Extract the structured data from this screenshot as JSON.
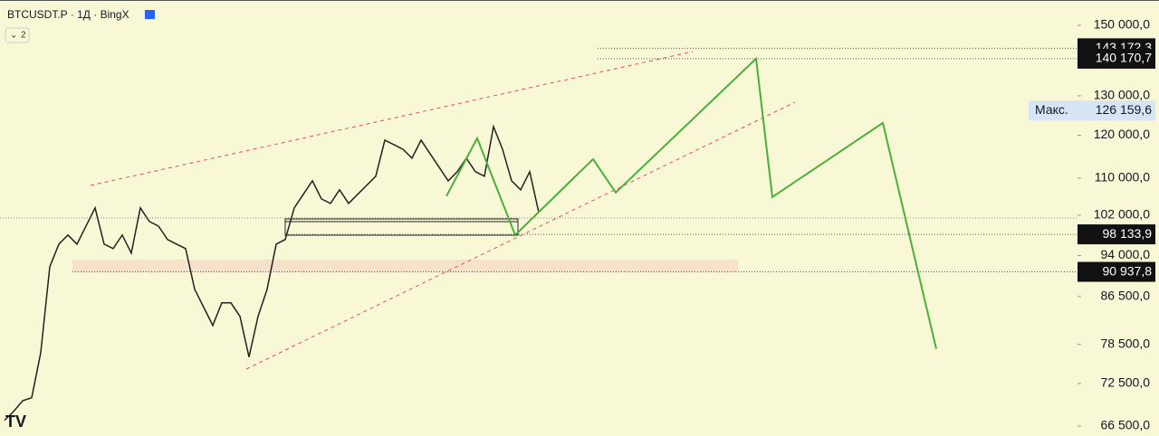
{
  "header": {
    "symbol": "BTCUSDT.P · 1Д · BingX",
    "indicators": "2"
  },
  "price_axis": {
    "scale": "log",
    "ticks": [
      {
        "value": 150000,
        "label": "150 000,0"
      },
      {
        "value": 130000,
        "label": "130 000,0"
      },
      {
        "value": 120000,
        "label": "120 000,0"
      },
      {
        "value": 110000,
        "label": "110 000,0"
      },
      {
        "value": 102000,
        "label": "102 000,0"
      },
      {
        "value": 94000,
        "label": "94 000,0"
      },
      {
        "value": 86500,
        "label": "86 500,0"
      },
      {
        "value": 78500,
        "label": "78 500,0"
      },
      {
        "value": 72500,
        "label": "72 500,0"
      },
      {
        "value": 66500,
        "label": "66 500,0"
      }
    ]
  },
  "price_history": [
    67280,
    68500,
    70000,
    70440,
    77200,
    91900,
    96200,
    98000,
    96200,
    99800,
    103550,
    96200,
    95340,
    98000,
    94470,
    103550,
    100730,
    99800,
    97100,
    96200,
    95340,
    87780,
    84620,
    81570,
    85400,
    85400,
    83090,
    76500,
    83090,
    87780,
    96200,
    97100,
    103550,
    106440,
    109400,
    105460,
    104490,
    107420,
    104490,
    106440,
    108400,
    110420,
    118820,
    117730,
    116650,
    114540,
    118820,
    115590,
    112450,
    109400,
    111440,
    114540,
    111440,
    110420,
    122130,
    116650,
    109400,
    107420,
    111440,
    102600
  ],
  "projection": [
    106050,
    119250,
    98000,
    114330,
    106830,
    140170,
    105860,
    123030,
    77780
  ],
  "price_tags": [
    {
      "value": 143172.3,
      "label": "143 172,3"
    },
    {
      "value": 140170.7,
      "label": "140 170,7"
    },
    {
      "value": 126159.6,
      "label": "126 159,6",
      "caption": "Макс."
    },
    {
      "value": 98133.9,
      "label": "98 133,9"
    },
    {
      "value": 90937.8,
      "label": "90 937,8"
    }
  ]
}
